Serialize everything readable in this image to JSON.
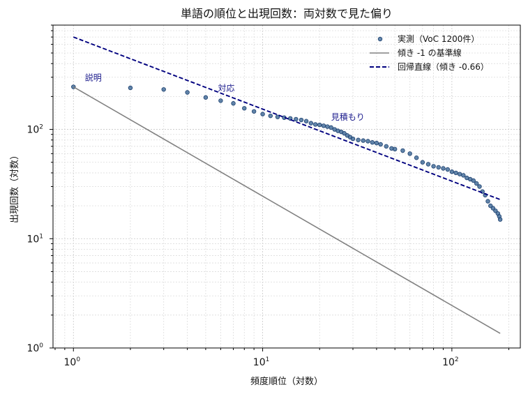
{
  "chart_data": {
    "type": "scatter",
    "title": "単語の順位と出現回数：両対数で見た偏り",
    "xlabel": "頻度順位（対数）",
    "ylabel": "出現回数（対数）",
    "xscale": "log",
    "yscale": "log",
    "xlim": [
      0.78,
      230
    ],
    "ylim": [
      1,
      900
    ],
    "grid": true,
    "legend_position": "top-right",
    "x_ticks": [
      {
        "base": "10",
        "exp": "0"
      },
      {
        "base": "10",
        "exp": "1"
      },
      {
        "base": "10",
        "exp": "2"
      }
    ],
    "y_ticks": [
      {
        "base": "10",
        "exp": "0"
      },
      {
        "base": "10",
        "exp": "1"
      },
      {
        "base": "10",
        "exp": "2"
      }
    ],
    "series": [
      {
        "name": "実測（VoC 1200件）",
        "kind": "points",
        "color": "#2e5c8e",
        "x": [
          1,
          2,
          3,
          4,
          5,
          6,
          7,
          8,
          9,
          10,
          11,
          12,
          13,
          14,
          15,
          16,
          17,
          18,
          19,
          20,
          21,
          22,
          23,
          24,
          25,
          26,
          27,
          28,
          29,
          30,
          32,
          34,
          36,
          38,
          40,
          42,
          45,
          48,
          50,
          55,
          60,
          65,
          70,
          75,
          80,
          85,
          90,
          95,
          100,
          105,
          110,
          115,
          120,
          125,
          130,
          135,
          140,
          145,
          150,
          155,
          160,
          165,
          170,
          175,
          178,
          180
        ],
        "y": [
          245,
          240,
          232,
          218,
          196,
          183,
          173,
          156,
          146,
          138,
          133,
          130,
          128,
          126,
          124,
          122,
          119,
          114,
          111,
          110,
          108,
          106,
          104,
          100,
          97,
          95,
          92,
          88,
          85,
          82,
          80,
          79,
          78,
          76,
          75,
          73,
          70,
          67,
          66,
          64,
          60,
          55,
          50,
          48,
          46,
          45,
          44,
          43,
          41,
          40,
          39,
          38,
          36,
          35,
          34,
          32,
          30,
          27,
          25,
          22,
          20,
          19,
          18,
          17,
          16,
          15
        ]
      },
      {
        "name": "傾き -1 の基準線",
        "kind": "line",
        "color": "#808080",
        "x": [
          1,
          180
        ],
        "y": [
          245,
          1.36
        ]
      },
      {
        "name": "回帰直線（傾き -0.66）",
        "kind": "dashed-line",
        "color": "#00007f",
        "x": [
          1,
          180
        ],
        "y": [
          700,
          22.8
        ]
      }
    ],
    "annotations": [
      {
        "text": "説明",
        "x": 1.15,
        "y": 280
      },
      {
        "text": "対応",
        "x": 5.8,
        "y": 225
      },
      {
        "text": "見積もり",
        "x": 23,
        "y": 122
      }
    ]
  }
}
